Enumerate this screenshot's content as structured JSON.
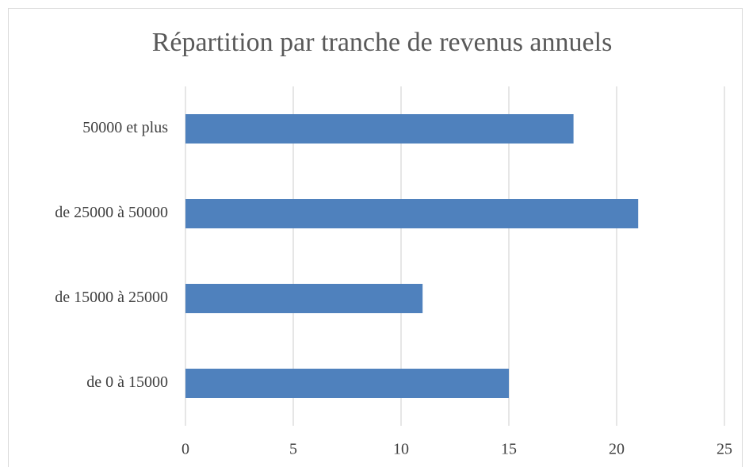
{
  "chart_data": {
    "type": "bar",
    "orientation": "horizontal",
    "title": "Répartition par tranche de revenus annuels",
    "categories": [
      "de 0 à 15000",
      "de 15000 à 25000",
      "de 25000 à 50000",
      "50000 et plus"
    ],
    "values": [
      15,
      11,
      21,
      18
    ],
    "color": "#4f81bd",
    "xlim": [
      0,
      25
    ],
    "xticks": [
      0,
      5,
      10,
      15,
      20,
      25
    ],
    "grid": true
  }
}
